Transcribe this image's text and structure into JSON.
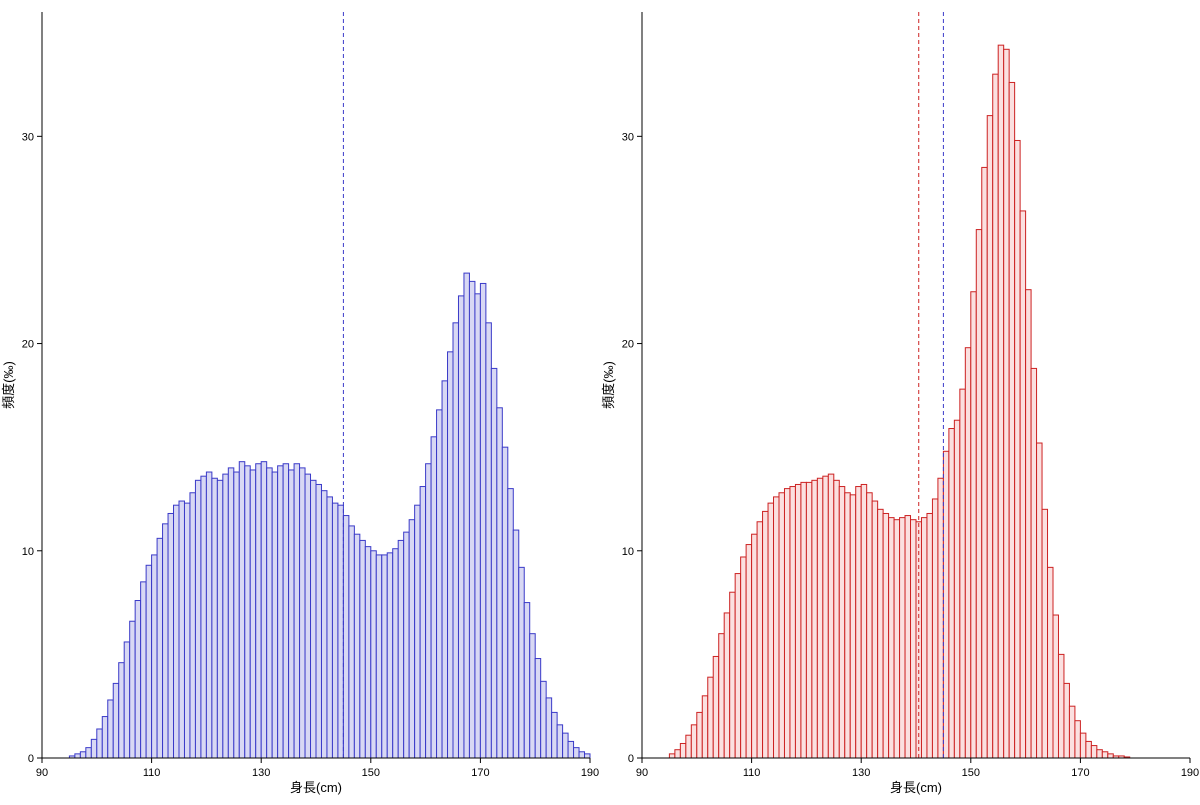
{
  "page": {
    "background": "#ffffff"
  },
  "chart_data": [
    {
      "type": "histogram",
      "panel": "left",
      "title": "",
      "xlabel": "身長(cm)",
      "ylabel": "頻度(‰)",
      "xlim": [
        90,
        190
      ],
      "ylim": [
        0,
        36
      ],
      "xticks": [
        90,
        110,
        130,
        150,
        170,
        190
      ],
      "yticks": [
        0,
        10,
        20,
        30
      ],
      "grid": false,
      "legend": "none",
      "bin_width": 1,
      "bins_start": 95,
      "bar_color": "#3a3ac8",
      "bar_fill": "#d8d8f4",
      "values": [
        0.1,
        0.2,
        0.3,
        0.5,
        0.9,
        1.4,
        2.0,
        2.8,
        3.6,
        4.6,
        5.6,
        6.6,
        7.6,
        8.5,
        9.3,
        9.8,
        10.6,
        11.3,
        11.8,
        12.2,
        12.4,
        12.3,
        12.8,
        13.4,
        13.6,
        13.8,
        13.5,
        13.4,
        13.7,
        14.0,
        13.8,
        14.3,
        14.1,
        13.9,
        14.2,
        14.3,
        14.0,
        13.8,
        14.1,
        14.2,
        13.9,
        14.2,
        14.0,
        13.7,
        13.4,
        13.2,
        12.9,
        12.6,
        12.3,
        12.2,
        11.7,
        11.2,
        10.8,
        10.5,
        10.2,
        10.0,
        9.8,
        9.8,
        9.9,
        10.1,
        10.5,
        10.9,
        11.5,
        12.2,
        13.1,
        14.2,
        15.5,
        16.8,
        18.2,
        19.6,
        21.0,
        22.3,
        23.4,
        23.0,
        22.4,
        22.9,
        21.0,
        18.8,
        16.9,
        15.0,
        13.0,
        11.0,
        9.2,
        7.5,
        6.0,
        4.8,
        3.7,
        2.9,
        2.2,
        1.6,
        1.2,
        0.8,
        0.5,
        0.3,
        0.2
      ],
      "vlines": [
        {
          "x": 145,
          "color": "#3a3ac8",
          "style": "dashed"
        }
      ]
    },
    {
      "type": "histogram",
      "panel": "right",
      "title": "",
      "xlabel": "身長(cm)",
      "ylabel": "頻度(‰)",
      "xlim": [
        90,
        190
      ],
      "ylim": [
        0,
        36
      ],
      "xticks": [
        90,
        110,
        130,
        150,
        170,
        190
      ],
      "yticks": [
        0,
        10,
        20,
        30
      ],
      "grid": false,
      "legend": "none",
      "bin_width": 1,
      "bins_start": 95,
      "bar_color": "#cc2222",
      "bar_fill": "#fbe0e0",
      "values": [
        0.2,
        0.4,
        0.7,
        1.1,
        1.6,
        2.2,
        3.0,
        3.9,
        4.9,
        6.0,
        7.0,
        8.0,
        8.9,
        9.7,
        10.3,
        10.8,
        11.4,
        11.9,
        12.3,
        12.6,
        12.8,
        13.0,
        13.1,
        13.2,
        13.3,
        13.3,
        13.4,
        13.5,
        13.6,
        13.7,
        13.4,
        13.1,
        12.8,
        12.7,
        13.1,
        13.2,
        12.8,
        12.4,
        12.0,
        11.8,
        11.6,
        11.5,
        11.6,
        11.7,
        11.5,
        11.4,
        11.6,
        11.8,
        12.5,
        13.5,
        14.8,
        15.9,
        16.3,
        17.8,
        19.8,
        22.5,
        25.5,
        28.5,
        31.0,
        33.0,
        34.4,
        34.2,
        32.6,
        29.8,
        26.4,
        22.6,
        18.8,
        15.2,
        12.0,
        9.2,
        6.9,
        5.0,
        3.6,
        2.5,
        1.8,
        1.2,
        0.8,
        0.6,
        0.4,
        0.3,
        0.2,
        0.1,
        0.1,
        0.05
      ],
      "vlines": [
        {
          "x": 140.5,
          "color": "#cc2222",
          "style": "dashed"
        },
        {
          "x": 145,
          "color": "#3a3ac8",
          "style": "dashed"
        }
      ]
    }
  ]
}
